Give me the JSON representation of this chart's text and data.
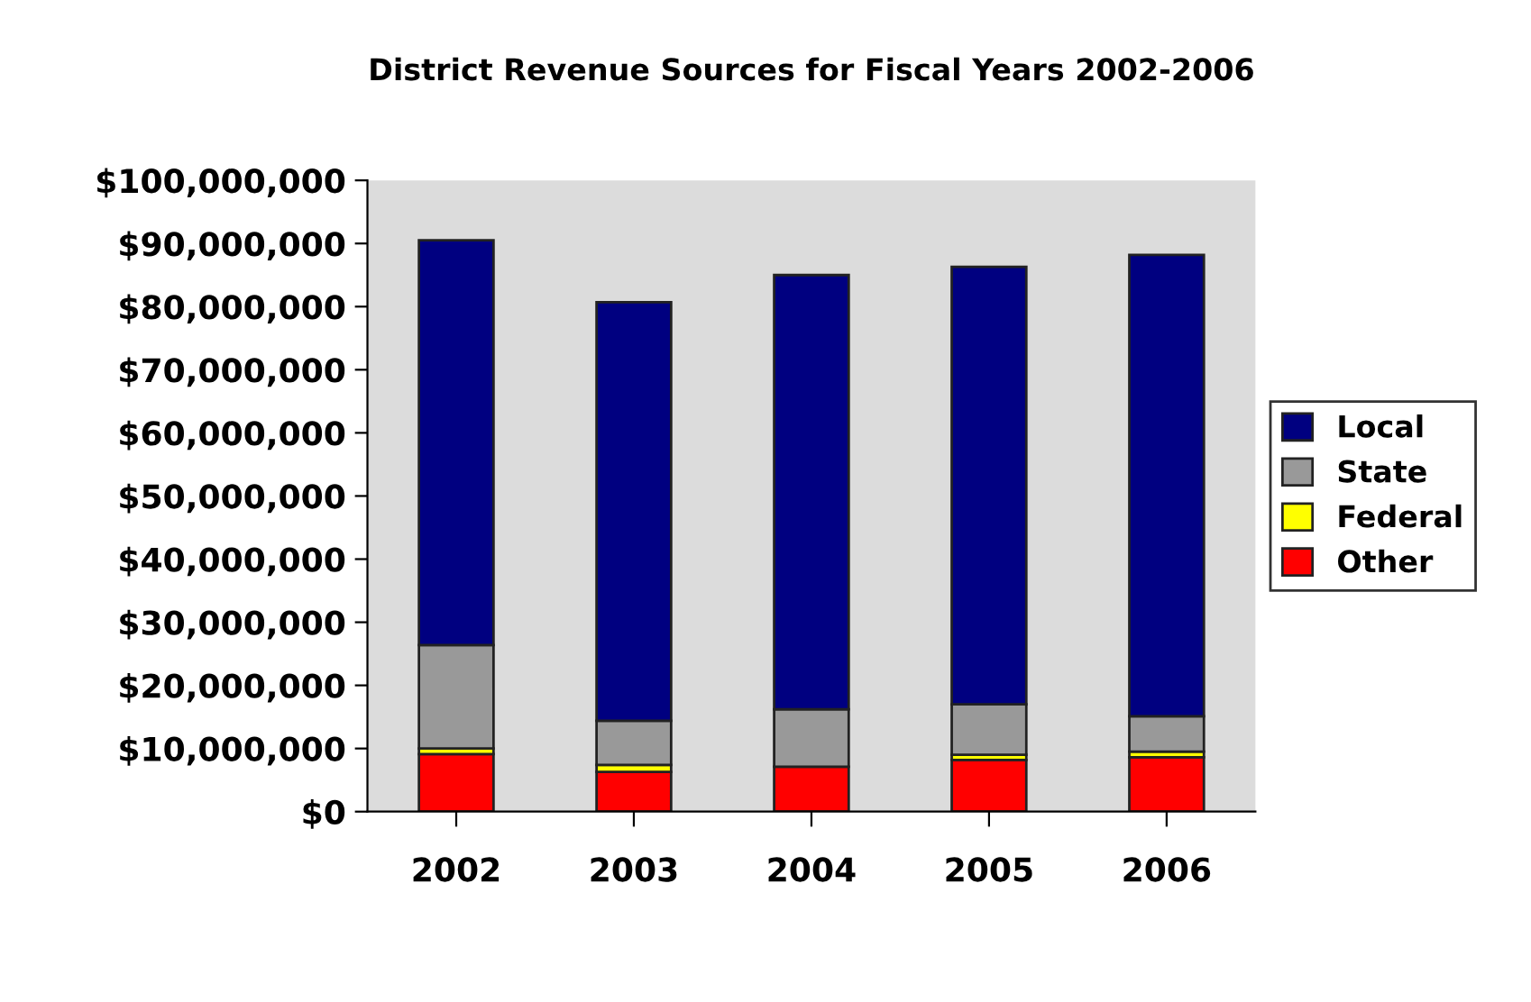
{
  "chart_data": {
    "type": "bar",
    "title": "District Revenue Sources for Fiscal Years 2002-2006",
    "categories": [
      "2002",
      "2003",
      "2004",
      "2005",
      "2006"
    ],
    "stacked": true,
    "series": [
      {
        "name": "Other",
        "color": "#ff0000",
        "values": [
          9100000,
          6300000,
          7100000,
          8200000,
          8600000
        ]
      },
      {
        "name": "Federal",
        "color": "#ffff00",
        "values": [
          900000,
          1100000,
          null,
          800000,
          900000
        ]
      },
      {
        "name": "State",
        "color": "#999999",
        "values": [
          16400000,
          7000000,
          9100000,
          8000000,
          5600000
        ]
      },
      {
        "name": "Local",
        "color": "#000080",
        "values": [
          64100000,
          66300000,
          68800000,
          69300000,
          73100000
        ]
      }
    ],
    "ylim": [
      0,
      100000000
    ],
    "yticks": [
      {
        "value": 0,
        "label": "$0"
      },
      {
        "value": 10000000,
        "label": "$10,000,000"
      },
      {
        "value": 20000000,
        "label": "$20,000,000"
      },
      {
        "value": 30000000,
        "label": "$30,000,000"
      },
      {
        "value": 40000000,
        "label": "$40,000,000"
      },
      {
        "value": 50000000,
        "label": "$50,000,000"
      },
      {
        "value": 60000000,
        "label": "$60,000,000"
      },
      {
        "value": 70000000,
        "label": "$70,000,000"
      },
      {
        "value": 80000000,
        "label": "$80,000,000"
      },
      {
        "value": 90000000,
        "label": "$90,000,000"
      },
      {
        "value": 100000000,
        "label": "$100,000,000"
      }
    ],
    "grid": false,
    "legend": "right"
  }
}
